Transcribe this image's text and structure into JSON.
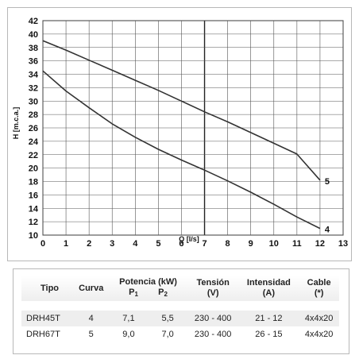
{
  "chart_data": {
    "type": "line",
    "xlabel": "Q [l/s]",
    "ylabel": "H [m.c.a.]",
    "xlim": [
      0,
      13
    ],
    "ylim": [
      10,
      42
    ],
    "xticks": [
      0,
      1,
      2,
      3,
      4,
      5,
      6,
      7,
      8,
      9,
      10,
      11,
      12,
      13
    ],
    "yticks": [
      10,
      12,
      14,
      16,
      18,
      20,
      22,
      24,
      26,
      28,
      30,
      32,
      34,
      36,
      38,
      40,
      42
    ],
    "grid": true,
    "series": [
      {
        "name": "5",
        "x": [
          0,
          1,
          2,
          3,
          4,
          5,
          6,
          7,
          8,
          9,
          10,
          11,
          12
        ],
        "y": [
          39,
          37.6,
          36.1,
          34.6,
          33.1,
          31.6,
          30,
          28.4,
          26.9,
          25.3,
          23.7,
          22.1,
          18.2
        ]
      },
      {
        "name": "4",
        "x": [
          0,
          1,
          2,
          3,
          4,
          5,
          6,
          7,
          8,
          9,
          10,
          11,
          12
        ],
        "y": [
          34.5,
          31.5,
          29,
          26.6,
          24.6,
          22.8,
          21.2,
          19.7,
          18.1,
          16.4,
          14.6,
          12.7,
          11
        ]
      }
    ]
  },
  "table": {
    "headers": {
      "tipo": "Tipo",
      "curva": "Curva",
      "potencia": "Potencia (kW)",
      "p1": "P",
      "p1_sub": "1",
      "p2": "P",
      "p2_sub": "2",
      "tension": "Tensión",
      "tension_unit": "(V)",
      "intensidad": "Intensidad",
      "intensidad_unit": "(A)",
      "cable": "Cable",
      "cable_unit": "(*)"
    },
    "rows": [
      {
        "tipo": "DRH45T",
        "curva": "4",
        "p1": "7,1",
        "p2": "5,5",
        "tension": "230 - 400",
        "intensidad": "21 - 12",
        "cable": "4x4x20"
      },
      {
        "tipo": "DRH67T",
        "curva": "5",
        "p1": "9,0",
        "p2": "7,0",
        "tension": "230 - 400",
        "intensidad": "26 - 15",
        "cable": "4x4x20"
      }
    ]
  }
}
